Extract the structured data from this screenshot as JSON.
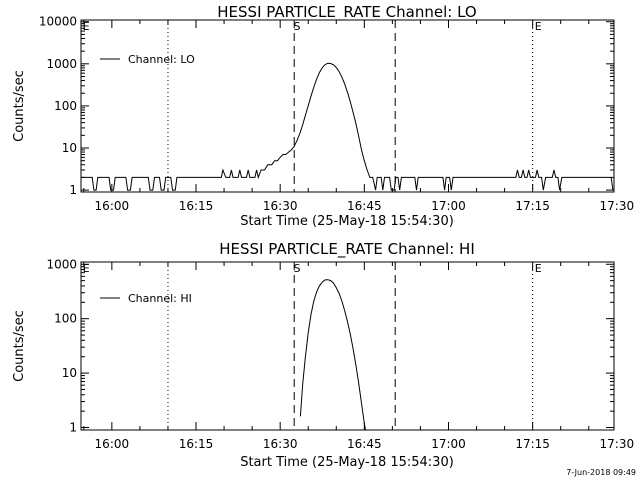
{
  "chart_data": [
    {
      "type": "line",
      "title": "HESSI PARTICLE_RATE Channel: LO",
      "xlabel": "Start Time (25-May-18 15:54:30)",
      "ylabel": "Counts/sec",
      "y_scale": "log",
      "xlim_minutes": [
        -5.5,
        89.5
      ],
      "ylim": [
        0.9,
        11000
      ],
      "x_tick_labels": [
        "16:00",
        "16:15",
        "16:30",
        "16:45",
        "17:00",
        "17:15",
        "17:30"
      ],
      "x_tick_minutes": [
        0,
        15,
        30,
        45,
        60,
        75,
        90
      ],
      "y_tick_labels": [
        "1",
        "10",
        "100",
        "1000",
        "10000"
      ],
      "y_tick_values": [
        1,
        10,
        100,
        1000,
        10000
      ],
      "legend": {
        "label": "Channel: LO",
        "placement": "top-left"
      },
      "dashed_lines_minutes": [
        32.5,
        50.5
      ],
      "dotted_lines_minutes": [
        10,
        75,
        89.5
      ],
      "markers": [
        {
          "label": "S",
          "minute": 33
        },
        {
          "label": "E",
          "minute": 76
        },
        {
          "label": "E",
          "minute": -4.6
        }
      ],
      "series": [
        {
          "points": [
            [
              -5.5,
              2
            ],
            [
              -3.5,
              2
            ],
            [
              -3.2,
              1
            ],
            [
              -2.8,
              1
            ],
            [
              -2.5,
              2
            ],
            [
              -0.5,
              2
            ],
            [
              -0.2,
              1
            ],
            [
              0.3,
              1
            ],
            [
              0.6,
              2
            ],
            [
              2.5,
              2
            ],
            [
              2.8,
              1
            ],
            [
              3.3,
              1
            ],
            [
              3.6,
              2
            ],
            [
              6.5,
              2
            ],
            [
              6.8,
              1
            ],
            [
              7.3,
              1
            ],
            [
              7.6,
              2
            ],
            [
              8.5,
              2
            ],
            [
              8.8,
              1
            ],
            [
              9.3,
              1
            ],
            [
              9.6,
              2
            ],
            [
              10.5,
              2
            ],
            [
              10.8,
              1
            ],
            [
              11.3,
              1
            ],
            [
              11.6,
              2
            ],
            [
              19.5,
              2
            ],
            [
              19.8,
              3
            ],
            [
              20.3,
              2
            ],
            [
              21,
              2
            ],
            [
              21.3,
              3
            ],
            [
              21.6,
              2
            ],
            [
              22.5,
              2
            ],
            [
              22.8,
              3
            ],
            [
              23.1,
              2
            ],
            [
              24,
              2
            ],
            [
              24.3,
              3
            ],
            [
              24.6,
              2
            ],
            [
              25.5,
              2
            ],
            [
              25.8,
              3
            ],
            [
              26.1,
              2
            ],
            [
              26.6,
              3
            ],
            [
              27.2,
              3
            ],
            [
              27.8,
              4
            ],
            [
              28.5,
              4
            ],
            [
              29,
              5
            ],
            [
              29.5,
              5
            ],
            [
              30,
              6
            ],
            [
              30.5,
              7
            ],
            [
              31,
              7
            ],
            [
              31.5,
              8
            ],
            [
              32,
              9
            ],
            [
              32.5,
              11
            ],
            [
              33,
              15
            ],
            [
              33.5,
              22
            ],
            [
              34,
              35
            ],
            [
              34.5,
              60
            ],
            [
              35,
              100
            ],
            [
              35.5,
              170
            ],
            [
              36,
              280
            ],
            [
              36.5,
              430
            ],
            [
              37,
              620
            ],
            [
              37.5,
              810
            ],
            [
              38,
              960
            ],
            [
              38.5,
              1030
            ],
            [
              39,
              1020
            ],
            [
              39.5,
              950
            ],
            [
              40,
              820
            ],
            [
              40.5,
              650
            ],
            [
              41,
              480
            ],
            [
              41.5,
              330
            ],
            [
              42,
              210
            ],
            [
              42.5,
              125
            ],
            [
              43,
              70
            ],
            [
              43.5,
              38
            ],
            [
              44,
              19
            ],
            [
              44.5,
              9
            ],
            [
              45,
              5
            ],
            [
              45.5,
              3
            ],
            [
              46,
              2
            ],
            [
              46.5,
              2
            ],
            [
              47,
              1
            ],
            [
              47.3,
              2
            ],
            [
              48,
              2
            ],
            [
              48.3,
              1
            ],
            [
              48.6,
              2
            ],
            [
              49.5,
              2
            ],
            [
              49.8,
              1
            ],
            [
              50.3,
              1
            ],
            [
              50.6,
              2
            ],
            [
              51,
              2
            ],
            [
              51.3,
              1
            ],
            [
              51.6,
              2
            ],
            [
              54,
              2
            ],
            [
              54.3,
              1
            ],
            [
              54.6,
              2
            ],
            [
              59,
              2
            ],
            [
              59.3,
              1
            ],
            [
              59.6,
              2
            ],
            [
              60.2,
              2
            ],
            [
              60.5,
              1
            ],
            [
              60.8,
              2
            ],
            [
              72,
              2
            ],
            [
              72.3,
              3
            ],
            [
              72.6,
              2
            ],
            [
              73,
              2
            ],
            [
              73.3,
              3
            ],
            [
              73.6,
              2
            ],
            [
              74,
              2
            ],
            [
              74.3,
              3
            ],
            [
              74.6,
              2
            ],
            [
              75.5,
              2
            ],
            [
              75.8,
              3
            ],
            [
              76.1,
              2
            ],
            [
              76.6,
              2
            ],
            [
              76.9,
              1
            ],
            [
              77.3,
              2
            ],
            [
              78.5,
              2
            ],
            [
              78.8,
              3
            ],
            [
              79.1,
              2
            ],
            [
              79.5,
              2
            ],
            [
              79.8,
              1
            ],
            [
              80.2,
              2
            ],
            [
              89,
              2
            ],
            [
              89.3,
              1
            ]
          ]
        }
      ]
    },
    {
      "type": "line",
      "title": "HESSI PARTICLE_RATE Channel: HI",
      "xlabel": "Start Time (25-May-18 15:54:30)",
      "ylabel": "Counts/sec",
      "y_scale": "log",
      "xlim_minutes": [
        -5.5,
        89.5
      ],
      "ylim": [
        0.9,
        1100
      ],
      "x_tick_labels": [
        "16:00",
        "16:15",
        "16:30",
        "16:45",
        "17:00",
        "17:15",
        "17:30"
      ],
      "x_tick_minutes": [
        0,
        15,
        30,
        45,
        60,
        75,
        90
      ],
      "y_tick_labels": [
        "1",
        "10",
        "100",
        "1000"
      ],
      "y_tick_values": [
        1,
        10,
        100,
        1000
      ],
      "legend": {
        "label": "Channel: HI",
        "placement": "top-left"
      },
      "dashed_lines_minutes": [
        32.5,
        50.5
      ],
      "dotted_lines_minutes": [
        10,
        75,
        89.5
      ],
      "markers": [
        {
          "label": "S",
          "minute": 33
        },
        {
          "label": "E",
          "minute": 76
        },
        {
          "label": "E",
          "minute": -4.6
        }
      ],
      "series": [
        {
          "points": [
            [
              33.6,
              1.6
            ],
            [
              34,
              6
            ],
            [
              34.5,
              20
            ],
            [
              35,
              55
            ],
            [
              35.5,
              120
            ],
            [
              36,
              210
            ],
            [
              36.5,
              310
            ],
            [
              37,
              400
            ],
            [
              37.5,
              470
            ],
            [
              38,
              515
            ],
            [
              38.5,
              520
            ],
            [
              39,
              500
            ],
            [
              39.5,
              450
            ],
            [
              40,
              370
            ],
            [
              40.5,
              290
            ],
            [
              41,
              210
            ],
            [
              41.5,
              140
            ],
            [
              42,
              88
            ],
            [
              42.5,
              52
            ],
            [
              43,
              28
            ],
            [
              43.5,
              14
            ],
            [
              44,
              6.5
            ],
            [
              44.5,
              2.8
            ],
            [
              45,
              1.2
            ],
            [
              45.2,
              0.9
            ]
          ]
        }
      ]
    }
  ],
  "footer": {
    "timestamp": "7-Jun-2018 09:49"
  }
}
